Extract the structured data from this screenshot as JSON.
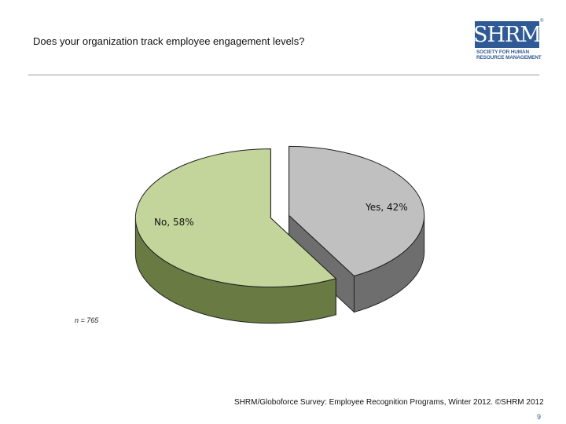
{
  "title": "Does your organization track employee engagement levels?",
  "logo": {
    "wordmark": "SHRM",
    "registered": "®",
    "line1": "SOCIETY FOR HUMAN",
    "line2": "RESOURCE MANAGEMENT",
    "color": "#2f5a95"
  },
  "chart_data": {
    "type": "pie",
    "style": "3d-exploded",
    "slices": [
      {
        "label": "Yes, 42%",
        "value": 42,
        "color": "#c0c0c0",
        "side_color": "#6e6e6e"
      },
      {
        "label": "No, 58%",
        "value": 58,
        "color": "#c4d59b",
        "side_color": "#6a7a43"
      }
    ]
  },
  "note": "n = 765",
  "source": "SHRM/Globoforce Survey: Employee Recognition Programs, Winter 2012. ©SHRM 2012",
  "page_number": "9"
}
